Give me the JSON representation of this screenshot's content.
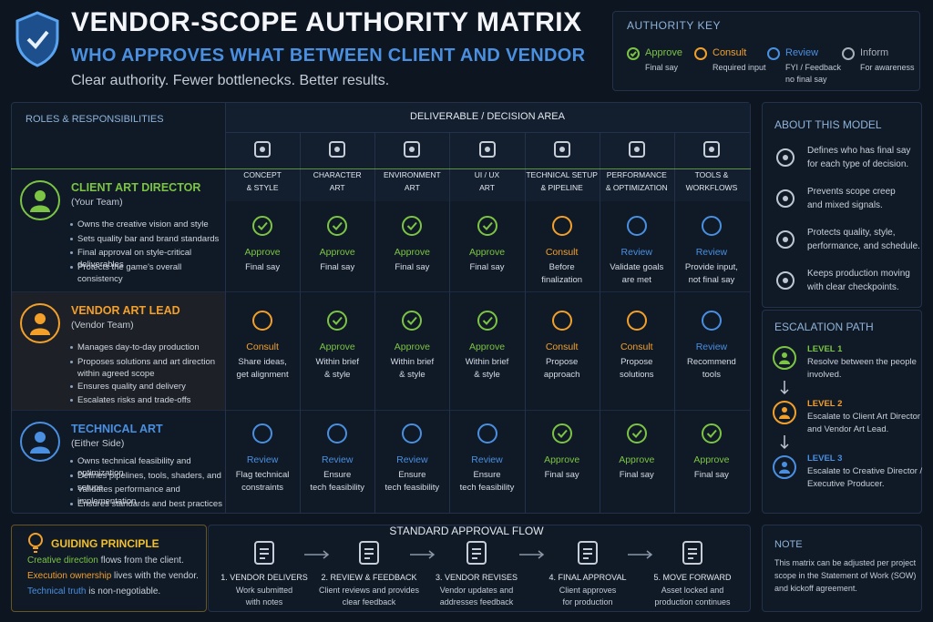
{
  "header": {
    "title": "VENDOR-SCOPE AUTHORITY MATRIX",
    "subtitle": "WHO APPROVES WHAT BETWEEN CLIENT AND VENDOR",
    "tagline": "Clear authority. Fewer bottlenecks. Better results."
  },
  "key": {
    "title": "AUTHORITY KEY",
    "items": [
      {
        "label": "Approve",
        "color": "#7cc443",
        "desc": [
          "Final say"
        ]
      },
      {
        "label": "Consult",
        "color": "#f3a02b",
        "desc": [
          "Required input"
        ]
      },
      {
        "label": "Review",
        "color": "#4a8fe0",
        "desc": [
          "FYI / Feedback",
          "no final say"
        ]
      },
      {
        "label": "Inform",
        "color": "#a8b0ba",
        "desc": [
          "For awareness"
        ]
      }
    ]
  },
  "matrix": {
    "roles_header": "ROLES & RESPONSIBILITIES",
    "area_header": "DELIVERABLE / DECISION AREA",
    "columns": [
      [
        "CONCEPT",
        "& STYLE"
      ],
      [
        "CHARACTER",
        "ART"
      ],
      [
        "ENVIRONMENT",
        "ART"
      ],
      [
        "UI / UX",
        "ART"
      ],
      [
        "TECHNICAL SETUP",
        "& PIPELINE"
      ],
      [
        "PERFORMANCE",
        "& OPTIMIZATION"
      ],
      [
        "TOOLS &",
        "WORKFLOWS"
      ]
    ],
    "roles": [
      {
        "name": "CLIENT ART DIRECTOR",
        "team": "(Your Team)",
        "color": "#7cc443",
        "bullets": [
          "Owns the creative vision and style",
          "Sets quality bar and brand standards",
          "Final approval on style-critical deliverables",
          "Protects the game's overall consistency"
        ],
        "cells": [
          {
            "level": "Approve",
            "note": [
              "Final say"
            ]
          },
          {
            "level": "Approve",
            "note": [
              "Final say"
            ]
          },
          {
            "level": "Approve",
            "note": [
              "Final say"
            ]
          },
          {
            "level": "Approve",
            "note": [
              "Final say"
            ]
          },
          {
            "level": "Consult",
            "note": [
              "Before",
              "finalization"
            ]
          },
          {
            "level": "Review",
            "note": [
              "Validate goals",
              "are met"
            ]
          },
          {
            "level": "Review",
            "note": [
              "Provide input,",
              "not final say"
            ]
          }
        ]
      },
      {
        "name": "VENDOR ART LEAD",
        "team": "(Vendor Team)",
        "color": "#f3a02b",
        "bullets": [
          "Manages day-to-day production",
          "Proposes solutions and art direction within agreed scope",
          "Ensures quality and delivery",
          "Escalates risks and trade-offs"
        ],
        "cells": [
          {
            "level": "Consult",
            "note": [
              "Share ideas,",
              "get alignment"
            ]
          },
          {
            "level": "Approve",
            "note": [
              "Within brief",
              "& style"
            ]
          },
          {
            "level": "Approve",
            "note": [
              "Within brief",
              "& style"
            ]
          },
          {
            "level": "Approve",
            "note": [
              "Within brief",
              "& style"
            ]
          },
          {
            "level": "Consult",
            "note": [
              "Propose",
              "approach"
            ]
          },
          {
            "level": "Consult",
            "note": [
              "Propose",
              "solutions"
            ]
          },
          {
            "level": "Review",
            "note": [
              "Recommend",
              "tools"
            ]
          }
        ]
      },
      {
        "name": "TECHNICAL ART",
        "team": "(Either Side)",
        "color": "#4a8fe0",
        "bullets": [
          "Owns technical feasibility and optimization",
          "Defines pipelines, tools, shaders, and setups",
          "Validates performance and implementation",
          "Ensures standards and best practices"
        ],
        "cells": [
          {
            "level": "Review",
            "note": [
              "Flag technical",
              "constraints"
            ]
          },
          {
            "level": "Review",
            "note": [
              "Ensure",
              "tech feasibility"
            ]
          },
          {
            "level": "Review",
            "note": [
              "Ensure",
              "tech feasibility"
            ]
          },
          {
            "level": "Review",
            "note": [
              "Ensure",
              "tech feasibility"
            ]
          },
          {
            "level": "Approve",
            "note": [
              "Final say"
            ]
          },
          {
            "level": "Approve",
            "note": [
              "Final say"
            ]
          },
          {
            "level": "Approve",
            "note": [
              "Final say"
            ]
          }
        ]
      }
    ]
  },
  "about": {
    "title": "ABOUT THIS MODEL",
    "items": [
      [
        "Defines who has final say",
        "for each type of decision."
      ],
      [
        "Prevents scope creep",
        "and mixed signals."
      ],
      [
        "Protects quality, style,",
        "performance, and schedule."
      ],
      [
        "Keeps production moving",
        "with clear checkpoints."
      ]
    ]
  },
  "escalation": {
    "title": "ESCALATION PATH",
    "levels": [
      {
        "level": "LEVEL 1",
        "color": "#7cc443",
        "text": [
          "Resolve between the people",
          "involved."
        ]
      },
      {
        "level": "LEVEL 2",
        "color": "#f3a02b",
        "text": [
          "Escalate to Client Art Director",
          "and Vendor Art Lead."
        ]
      },
      {
        "level": "LEVEL 3",
        "color": "#4a8fe0",
        "text": [
          "Escalate to Creative Director /",
          "Executive Producer."
        ]
      }
    ]
  },
  "principle": {
    "title": "GUIDING PRINCIPLE",
    "lines": [
      {
        "highlight": "Creative direction",
        "rest": " flows from the client.",
        "color": "#7cc443"
      },
      {
        "highlight": "Execution ownership",
        "rest": " lives with the vendor.",
        "color": "#f3a02b"
      },
      {
        "highlight": "Technical truth",
        "rest": " is non-negotiable.",
        "color": "#4a8fe0"
      }
    ]
  },
  "flow": {
    "title": "STANDARD APPROVAL FLOW",
    "steps": [
      {
        "title": "1. VENDOR DELIVERS",
        "desc": [
          "Work submitted",
          "with notes"
        ]
      },
      {
        "title": "2. REVIEW & FEEDBACK",
        "desc": [
          "Client reviews and provides",
          "clear feedback"
        ]
      },
      {
        "title": "3. VENDOR REVISES",
        "desc": [
          "Vendor updates and",
          "addresses feedback"
        ]
      },
      {
        "title": "4. FINAL APPROVAL",
        "desc": [
          "Client approves",
          "for production"
        ]
      },
      {
        "title": "5. MOVE FORWARD",
        "desc": [
          "Asset locked and",
          "production continues"
        ]
      }
    ]
  },
  "note": {
    "title": "NOTE",
    "text": [
      "This matrix can be adjusted per project",
      "scope in the Statement of Work (SOW)",
      "and kickoff agreement."
    ]
  }
}
